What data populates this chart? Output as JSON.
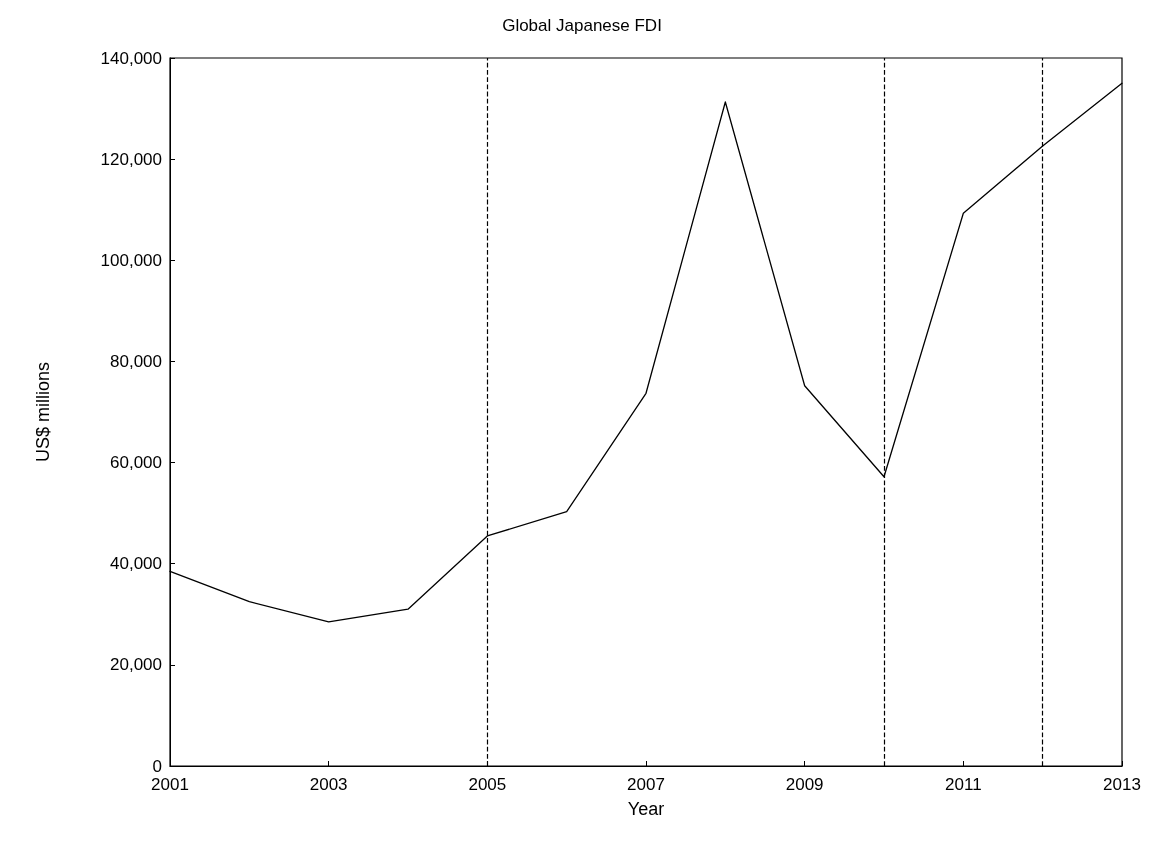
{
  "chart_data": {
    "type": "line",
    "title": "Global Japanese FDI",
    "xlabel": "Year",
    "ylabel": "US$ millions",
    "x": [
      2001,
      2002,
      2003,
      2004,
      2005,
      2006,
      2007,
      2008,
      2009,
      2010,
      2011,
      2012,
      2013
    ],
    "series": [
      {
        "color": "#000000",
        "values": [
          38500,
          32500,
          28500,
          31000,
          45500,
          50300,
          73700,
          131300,
          75200,
          57200,
          109300,
          122600,
          135000
        ]
      }
    ],
    "xlim": [
      2001,
      2013
    ],
    "xticks": [
      2001,
      2003,
      2005,
      2007,
      2009,
      2011,
      2013
    ],
    "ylim": [
      0,
      140000
    ],
    "yticks": [
      0,
      {
        "value": 20000,
        "label": "20,000"
      },
      {
        "value": 40000,
        "label": "40,000"
      },
      {
        "value": 60000,
        "label": "60,000"
      },
      {
        "value": 80000,
        "label": "80,000"
      },
      {
        "value": 100000,
        "label": "100,000"
      },
      {
        "value": 120000,
        "label": "120,000"
      },
      {
        "value": 140000,
        "label": "140,000"
      }
    ],
    "ref_lines": [
      {
        "axis": "x",
        "value": 2005,
        "color": "#000000",
        "line_style": "dashed"
      },
      {
        "axis": "x",
        "value": 2010,
        "color": "#000000",
        "line_style": "dashed"
      },
      {
        "axis": "x",
        "value": 2012,
        "color": "#000000",
        "line_style": "dashed"
      }
    ],
    "grid": false,
    "marker": "none",
    "line_style": "solid"
  }
}
